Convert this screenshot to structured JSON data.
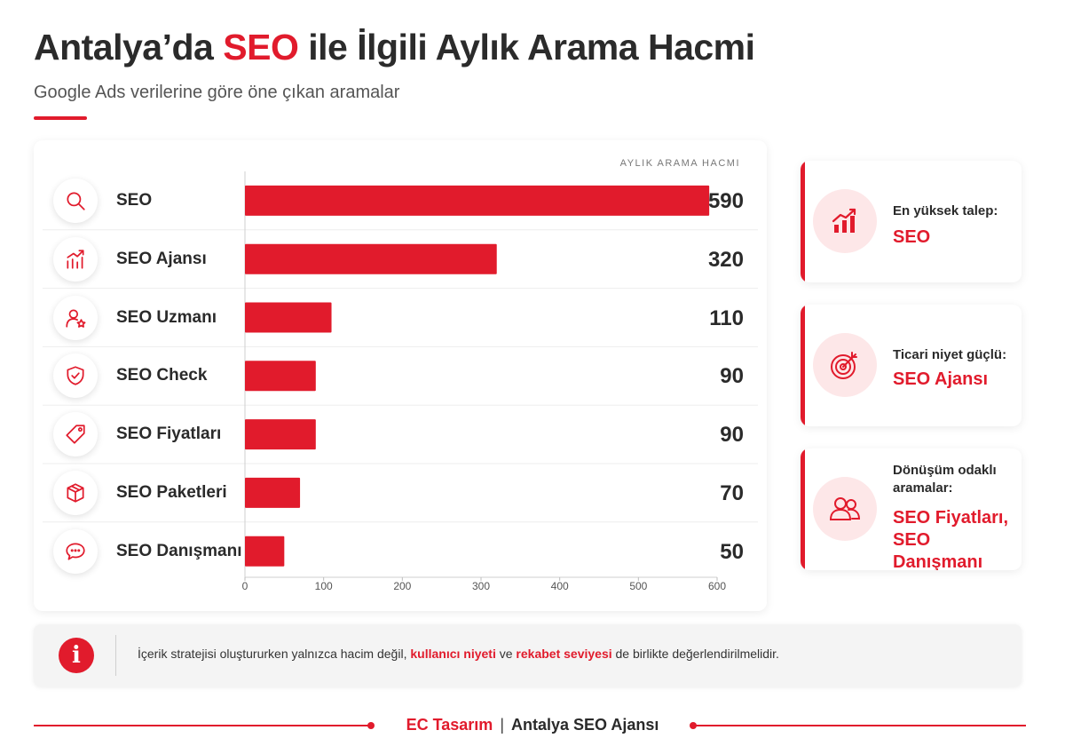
{
  "header": {
    "title_before": "Antalya’da",
    "title_highlight": "SEO",
    "title_after": "ile İlgili Aylık Arama Hacmi",
    "subtitle": "Google Ads verilerine göre öne çıkan aramalar"
  },
  "colors": {
    "accent": "#e11b2c",
    "accent_light": "#fde7e8",
    "text": "#2a2a2a",
    "grid": "#e6e6e6"
  },
  "chart_data": {
    "type": "bar",
    "orientation": "horizontal",
    "value_axis_caption": "AYLIK ARAMA HACMI",
    "categories": [
      "SEO",
      "SEO Ajansı",
      "SEO Uzmanı",
      "SEO Check",
      "SEO Fiyatları",
      "SEO Paketleri",
      "SEO Danışmanı"
    ],
    "icons": [
      "search-icon",
      "growth-chart-icon",
      "user-star-icon",
      "shield-check-icon",
      "price-tag-icon",
      "package-box-icon",
      "chat-bubble-icon"
    ],
    "values": [
      590,
      320,
      110,
      90,
      90,
      70,
      50
    ],
    "value_labels": [
      "590",
      "320",
      "110",
      "90",
      "90",
      "70",
      "50"
    ],
    "xlim": [
      0,
      600
    ],
    "x_ticks": [
      0,
      100,
      200,
      300,
      400,
      500,
      600
    ],
    "bar_color": "#e11b2c",
    "grid": true,
    "legend": "none"
  },
  "insights": [
    {
      "icon": "bar-chart-trend-icon",
      "label": "En yüksek talep:",
      "value": "SEO"
    },
    {
      "icon": "target-icon",
      "label": "Ticari niyet güçlü:",
      "value": "SEO Ajansı"
    },
    {
      "icon": "users-icon",
      "label": "Dönüşüm odaklı aramalar:",
      "value": "SEO Fiyatları, SEO Danışmanı"
    }
  ],
  "note": {
    "icon": "info-icon",
    "icon_glyph": "i",
    "text_1": "İçerik stratejisi oluştururken yalnızca hacim değil,",
    "em_1": "kullanıcı niyeti",
    "text_2": "ve",
    "em_2": "rekabet seviyesi",
    "text_3": "de birlikte değerlendirilmelidir."
  },
  "footer": {
    "brand": "EC Tasarım",
    "separator": "|",
    "agency": "Antalya SEO Ajansı"
  }
}
